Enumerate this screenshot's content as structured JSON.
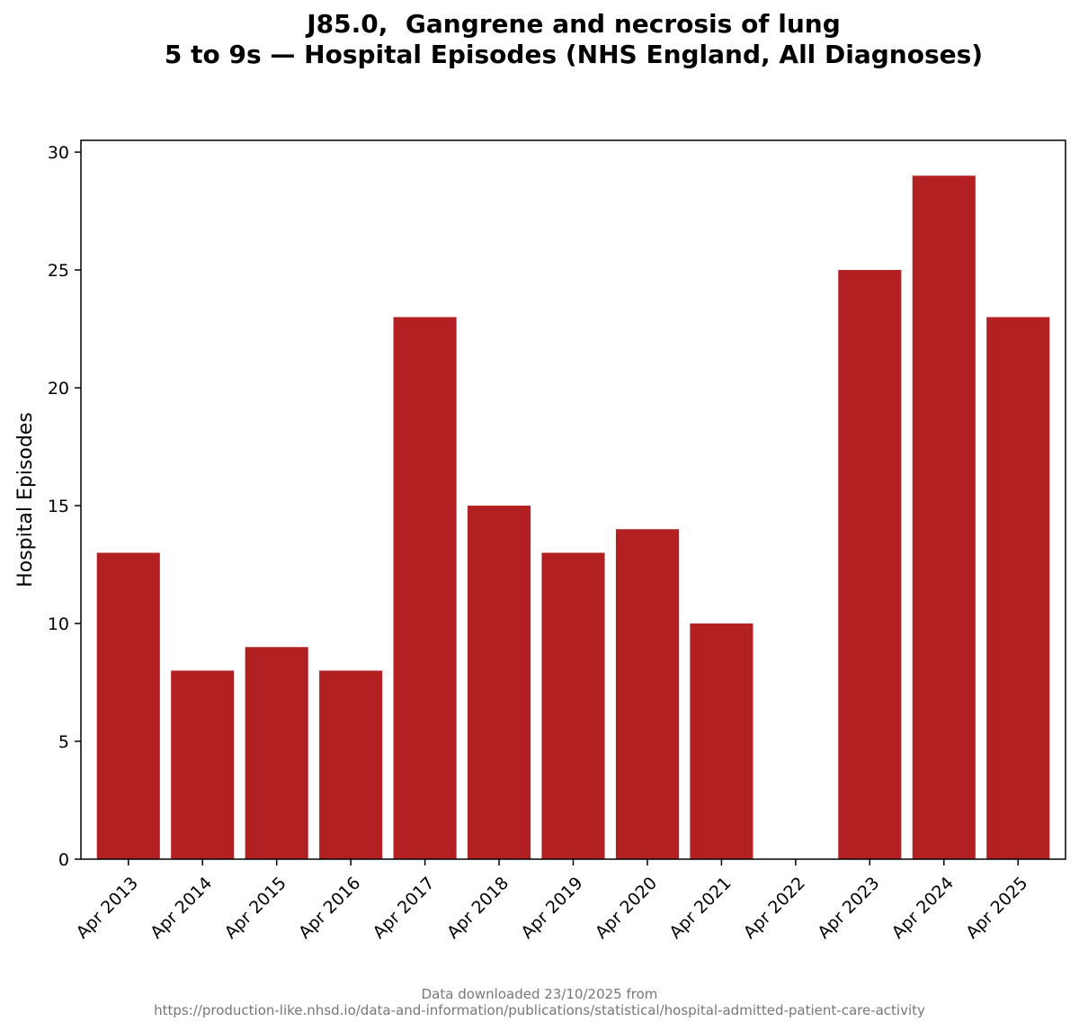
{
  "chart_data": {
    "type": "bar",
    "title_line1": "J85.0,  Gangrene and necrosis of lung",
    "title_line2": "5 to 9s — Hospital Episodes (NHS England, All Diagnoses)",
    "ylabel": "Hospital Episodes",
    "xlabel": "",
    "categories": [
      "Apr 2013",
      "Apr 2014",
      "Apr 2015",
      "Apr 2016",
      "Apr 2017",
      "Apr 2018",
      "Apr 2019",
      "Apr 2020",
      "Apr 2021",
      "Apr 2022",
      "Apr 2023",
      "Apr 2024",
      "Apr 2025"
    ],
    "values": [
      13,
      8,
      9,
      8,
      23,
      15,
      13,
      14,
      10,
      0,
      25,
      29,
      23
    ],
    "ylim": [
      0,
      30.5
    ],
    "yticks": [
      0,
      5,
      10,
      15,
      20,
      25,
      30
    ],
    "bar_color": "#b22022",
    "grid": false,
    "legend": "none"
  },
  "footer": {
    "line1": "Data downloaded 23/10/2025 from",
    "line2": "https://production-like.nhsd.io/data-and-information/publications/statistical/hospital-admitted-patient-care-activity"
  }
}
